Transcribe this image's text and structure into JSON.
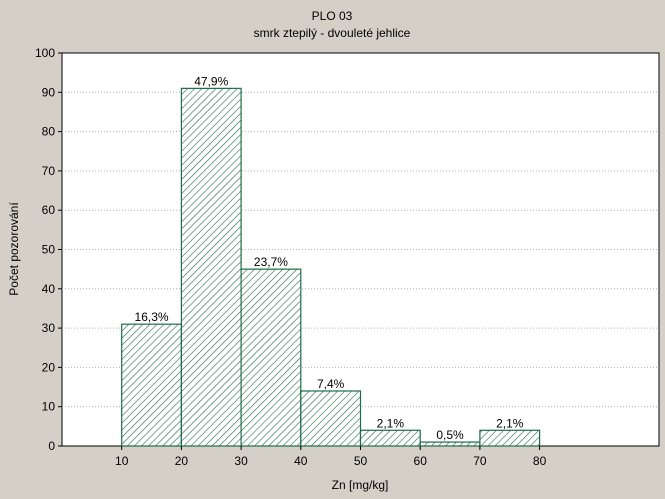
{
  "chart_data": {
    "type": "bar",
    "title": "PLO 03",
    "subtitle": "smrk ztepilý - dvouleté jehlice",
    "xlabel": "Zn [mg/kg]",
    "ylabel": "Počet pozorování",
    "xlim": [
      0,
      100
    ],
    "ylim": [
      0,
      100
    ],
    "x_ticks": [
      10,
      20,
      30,
      40,
      50,
      60,
      70,
      80
    ],
    "y_ticks": [
      0,
      10,
      20,
      30,
      40,
      50,
      60,
      70,
      80,
      90,
      100
    ],
    "grid": true,
    "bars": [
      {
        "from": 10,
        "to": 20,
        "value": 31,
        "label": "16,3%"
      },
      {
        "from": 20,
        "to": 30,
        "value": 91,
        "label": "47,9%"
      },
      {
        "from": 30,
        "to": 40,
        "value": 45,
        "label": "23,7%"
      },
      {
        "from": 40,
        "to": 50,
        "value": 14,
        "label": "7,4%"
      },
      {
        "from": 50,
        "to": 60,
        "value": 4,
        "label": "2,1%"
      },
      {
        "from": 60,
        "to": 70,
        "value": 1,
        "label": "0,5%"
      },
      {
        "from": 70,
        "to": 80,
        "value": 4,
        "label": "2,1%"
      }
    ],
    "colors": {
      "bar_fill": "#ffffff",
      "bar_stroke": "#1f6b4a",
      "hatch": "#1f6b4a",
      "grid": "#b0b0b0"
    }
  }
}
